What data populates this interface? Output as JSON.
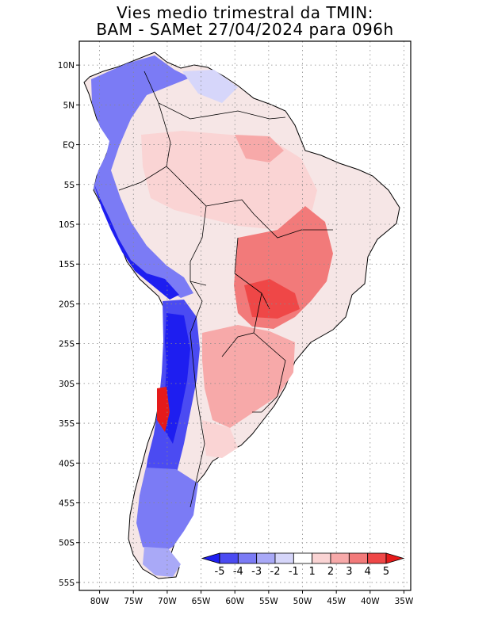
{
  "title": {
    "line1": "Vies medio trimestral da TMIN:",
    "line2": "BAM - SAMet 27/04/2024  para 096h"
  },
  "map": {
    "lon_range": [
      -83,
      -34
    ],
    "lat_range": [
      -56,
      13
    ],
    "grid": "dotted",
    "x_ticks": [
      "80W",
      "75W",
      "70W",
      "65W",
      "60W",
      "55W",
      "50W",
      "45W",
      "40W",
      "35W"
    ],
    "y_ticks": [
      "10N",
      "5N",
      "EQ",
      "5S",
      "10S",
      "15S",
      "20S",
      "25S",
      "30S",
      "35S",
      "40S",
      "45S",
      "50S",
      "55S"
    ]
  },
  "colorbar": {
    "labels": [
      "-5",
      "-4",
      "-3",
      "-2",
      "-1",
      "1",
      "2",
      "3",
      "4",
      "5"
    ],
    "colors": [
      "#1e1ef0",
      "#4b4bf2",
      "#7b7bf5",
      "#a9a9f7",
      "#d6d6fa",
      "#ffffff",
      "#fad4d4",
      "#f7a9a9",
      "#f27a7a",
      "#ef4747",
      "#e51a1a"
    ]
  }
}
